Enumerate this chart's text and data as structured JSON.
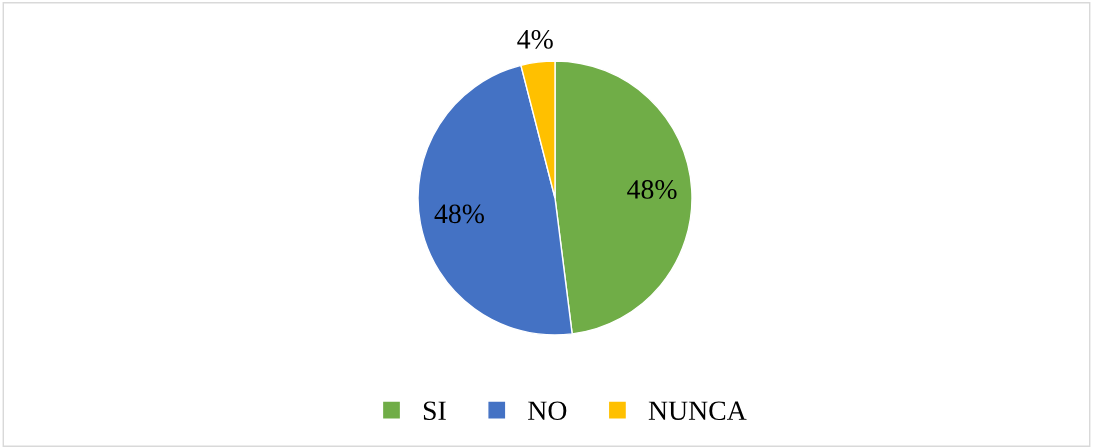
{
  "chart_data": {
    "type": "pie",
    "categories": [
      "SI",
      "NO",
      "NUNCA"
    ],
    "values": [
      48,
      48,
      4
    ],
    "colors": [
      "#70ad47",
      "#4472c4",
      "#ffc000"
    ],
    "value_labels": [
      "48%",
      "48%",
      "4%"
    ],
    "legend": "bottom"
  }
}
